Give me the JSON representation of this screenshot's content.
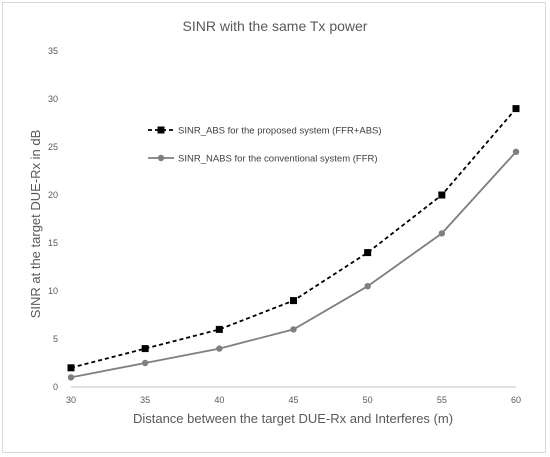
{
  "chart_data": {
    "type": "line",
    "title": "SINR with the same Tx power",
    "xlabel": "Distance between the target DUE-Rx and Interferes (m)",
    "ylabel": "SINR at the target DUE-Rx in dB",
    "x": [
      30,
      35,
      40,
      45,
      50,
      55,
      60
    ],
    "xlim": [
      30,
      60
    ],
    "ylim": [
      0,
      35
    ],
    "yticks": [
      0,
      5,
      10,
      15,
      20,
      25,
      30,
      35
    ],
    "grid": false,
    "legend_position": "center-left",
    "series": [
      {
        "name": "SINR_ABS for the proposed system (FFR+ABS)",
        "values": [
          2,
          4,
          6,
          9,
          14,
          20,
          29
        ],
        "color": "#000000",
        "line_style": "dashed",
        "marker": "square"
      },
      {
        "name": "SINR_NABS for the conventional system (FFR)",
        "values": [
          1,
          2.5,
          4,
          6,
          10.5,
          16,
          24.5
        ],
        "color": "#7f7f7f",
        "line_style": "solid",
        "marker": "circle"
      }
    ]
  }
}
